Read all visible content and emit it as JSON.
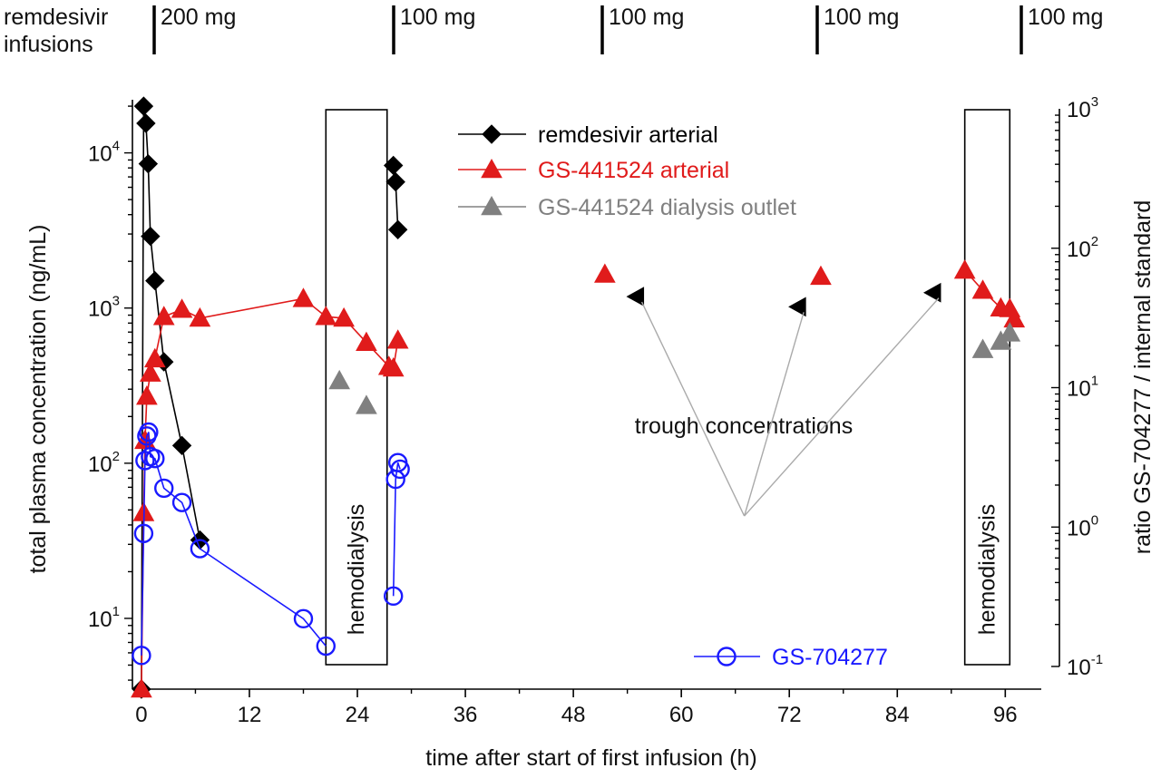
{
  "chart_data": {
    "type": "scatter",
    "x_axis": {
      "label": "time after start of first infusion (h)",
      "range": [
        -1,
        100
      ],
      "ticks": [
        0,
        12,
        24,
        36,
        48,
        60,
        72,
        84,
        96
      ],
      "tick_labels": [
        "0",
        "12",
        "24",
        "36",
        "48",
        "60",
        "72",
        "84",
        "96"
      ]
    },
    "y_axis_left": {
      "label": "total plasma concentration (ng/mL)",
      "scale": "log",
      "range": [
        3.5,
        22000
      ],
      "ticks": [
        10,
        100,
        1000,
        10000
      ],
      "tick_labels": [
        {
          "base": "10",
          "exp": "1"
        },
        {
          "base": "10",
          "exp": "2"
        },
        {
          "base": "10",
          "exp": "3"
        },
        {
          "base": "10",
          "exp": "4"
        }
      ]
    },
    "y_axis_right": {
      "label": "ratio GS-704277 / internal standard",
      "scale": "log",
      "range": [
        0.1,
        1000
      ],
      "ticks": [
        0.1,
        1,
        10,
        100,
        1000
      ],
      "tick_labels": [
        {
          "base": "10",
          "exp": "-1"
        },
        {
          "base": "10",
          "exp": "0"
        },
        {
          "base": "10",
          "exp": "1"
        },
        {
          "base": "10",
          "exp": "2"
        },
        {
          "base": "10",
          "exp": "3"
        }
      ]
    },
    "infusions": {
      "label_line1": "remdesivir",
      "label_line2": "infusions",
      "doses": [
        {
          "time": 0,
          "label": "200 mg"
        },
        {
          "time": 24,
          "label": "100 mg"
        },
        {
          "time": 48,
          "label": "100 mg"
        },
        {
          "time": 72,
          "label": "100 mg"
        },
        {
          "time": 96,
          "label": "100 mg"
        }
      ]
    },
    "hemodialysis_periods": [
      {
        "start": 20.5,
        "end": 27.3,
        "label": "hemodialysis"
      },
      {
        "start": 91.5,
        "end": 96.5,
        "label": "hemodialysis"
      }
    ],
    "series": [
      {
        "name": "remdesivir arterial",
        "axis": "left",
        "marker": "diamond",
        "color": "#000000",
        "connected": true,
        "points": [
          [
            0,
            3.5
          ],
          [
            0.25,
            20000
          ],
          [
            0.5,
            15500
          ],
          [
            0.75,
            8500
          ],
          [
            1.0,
            2900
          ],
          [
            1.5,
            1500
          ],
          [
            2.5,
            450
          ],
          [
            4.5,
            130
          ],
          [
            6.5,
            32
          ]
        ],
        "segments": [
          [
            [
              28,
              8300
            ],
            [
              28.25,
              6500
            ],
            [
              28.5,
              3200
            ]
          ]
        ]
      },
      {
        "name": "GS-441524 arterial",
        "axis": "left",
        "marker": "triangle",
        "color": "#e01b1b",
        "connected": true,
        "points": [
          [
            0,
            3.5
          ],
          [
            0.25,
            48
          ],
          [
            0.4,
            140
          ],
          [
            0.6,
            270
          ],
          [
            1.0,
            380
          ],
          [
            1.5,
            470
          ],
          [
            2.5,
            880
          ],
          [
            4.5,
            980
          ],
          [
            6.5,
            860
          ],
          [
            18,
            1150
          ],
          [
            20.5,
            880
          ],
          [
            22.5,
            860
          ],
          [
            25,
            600
          ],
          [
            27.5,
            420
          ],
          [
            28.0,
            410
          ],
          [
            28.5,
            620
          ]
        ],
        "segments": [
          [
            [
              91.5,
              1750
            ],
            [
              93.5,
              1300
            ],
            [
              95.5,
              1000
            ],
            [
              96.5,
              990
            ],
            [
              97.0,
              850
            ]
          ]
        ],
        "isolated_points": [
          [
            51.5,
            1650
          ],
          [
            75.5,
            1600
          ]
        ]
      },
      {
        "name": "GS-441524 dialysis outlet",
        "axis": "left",
        "marker": "triangle",
        "color": "#808080",
        "connected": false,
        "points": [
          [
            22,
            340
          ],
          [
            25,
            235
          ],
          [
            93.5,
            540
          ],
          [
            95.5,
            610
          ],
          [
            96.5,
            690
          ]
        ]
      },
      {
        "name": "remdesivir trough",
        "axis": "right",
        "marker": "triangle-left",
        "color": "#000000",
        "connected": false,
        "points": [
          [
            55,
            45
          ],
          [
            73,
            38
          ],
          [
            88,
            48
          ]
        ]
      },
      {
        "name": "GS-704277",
        "axis": "right",
        "marker": "circle-open",
        "color": "#1a1aff",
        "connected": true,
        "points": [
          [
            0,
            0.12
          ],
          [
            0.25,
            0.9
          ],
          [
            0.4,
            3.0
          ],
          [
            0.6,
            4.5
          ],
          [
            0.8,
            4.8
          ],
          [
            1.0,
            3.2
          ],
          [
            1.5,
            3.1
          ],
          [
            2.5,
            1.9
          ],
          [
            4.5,
            1.5
          ],
          [
            6.5,
            0.7
          ],
          [
            18,
            0.22
          ],
          [
            20.5,
            0.14
          ]
        ],
        "segments": [
          [
            [
              28,
              0.32
            ],
            [
              28.25,
              2.2
            ],
            [
              28.5,
              2.9
            ],
            [
              28.75,
              2.6
            ]
          ]
        ]
      }
    ],
    "annotations": [
      {
        "text": "trough concentrations",
        "anchor": [
          67,
          1.2
        ],
        "arrow_targets": [
          [
            55,
            45
          ],
          [
            73,
            38
          ],
          [
            88,
            48
          ]
        ]
      }
    ],
    "legend": {
      "entries": [
        "remdesivir arterial",
        "GS-441524 arterial",
        "GS-441524 dialysis outlet"
      ],
      "secondary_entry": "GS-704277",
      "placement": "top-center"
    }
  }
}
